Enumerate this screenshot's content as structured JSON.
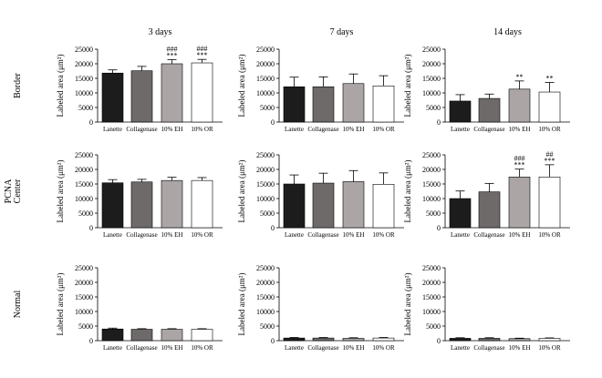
{
  "figure": {
    "columns": [
      "3 days",
      "7 days",
      "14 days"
    ],
    "row_labels": [
      "Border",
      "Center",
      "Normal"
    ],
    "group_label": "PCNA"
  },
  "chart_data": {
    "type": "bar",
    "title": "",
    "xlabel": "",
    "ylabel": "Labeled area (μm²)",
    "ylim": [
      0,
      25000
    ],
    "yticks": [
      0,
      5000,
      10000,
      15000,
      20000,
      25000
    ],
    "categories": [
      "Lanette",
      "Collagenase",
      "10% EH",
      "10% OR"
    ],
    "colors": [
      "#1c1c1c",
      "#6e6a6a",
      "#aba5a5",
      "#ffffff"
    ],
    "grid": false,
    "legend": "none",
    "panels": [
      {
        "row": "Border",
        "column": "3 days",
        "values": [
          16800,
          17600,
          20000,
          20300
        ],
        "errors": [
          1100,
          1500,
          1400,
          1200
        ],
        "annotations": [
          "",
          "",
          "***\n###",
          "***\n###"
        ]
      },
      {
        "row": "Border",
        "column": "7 days",
        "values": [
          12100,
          12100,
          13200,
          12400
        ],
        "errors": [
          3300,
          3400,
          3300,
          3500
        ],
        "annotations": [
          "",
          "",
          "",
          ""
        ]
      },
      {
        "row": "Border",
        "column": "14 days",
        "values": [
          7200,
          8100,
          11300,
          10300
        ],
        "errors": [
          2200,
          1500,
          2800,
          3300
        ],
        "annotations": [
          "",
          "",
          "**",
          "**"
        ]
      },
      {
        "row": "Center",
        "column": "3 days",
        "values": [
          15400,
          15700,
          16200,
          16200
        ],
        "errors": [
          1100,
          900,
          1100,
          1000
        ],
        "annotations": [
          "",
          "",
          "",
          ""
        ]
      },
      {
        "row": "Center",
        "column": "7 days",
        "values": [
          15000,
          15300,
          15800,
          14900
        ],
        "errors": [
          3100,
          3400,
          3800,
          3900
        ],
        "annotations": [
          "",
          "",
          "",
          ""
        ]
      },
      {
        "row": "Center",
        "column": "14 days",
        "values": [
          10000,
          12300,
          17400,
          17400
        ],
        "errors": [
          2600,
          2900,
          2700,
          4200
        ],
        "annotations": [
          "",
          "",
          "***\n###",
          "***\n##"
        ]
      },
      {
        "row": "Normal",
        "column": "3 days",
        "values": [
          4000,
          3900,
          3900,
          3900
        ],
        "errors": [
          300,
          200,
          200,
          200
        ],
        "annotations": [
          "",
          "",
          "",
          ""
        ]
      },
      {
        "row": "Normal",
        "column": "7 days",
        "values": [
          900,
          900,
          800,
          900
        ],
        "errors": [
          200,
          200,
          200,
          200
        ],
        "annotations": [
          "",
          "",
          "",
          ""
        ]
      },
      {
        "row": "Normal",
        "column": "14 days",
        "values": [
          800,
          800,
          700,
          800
        ],
        "errors": [
          200,
          200,
          150,
          150
        ],
        "annotations": [
          "",
          "",
          "",
          ""
        ]
      }
    ]
  }
}
